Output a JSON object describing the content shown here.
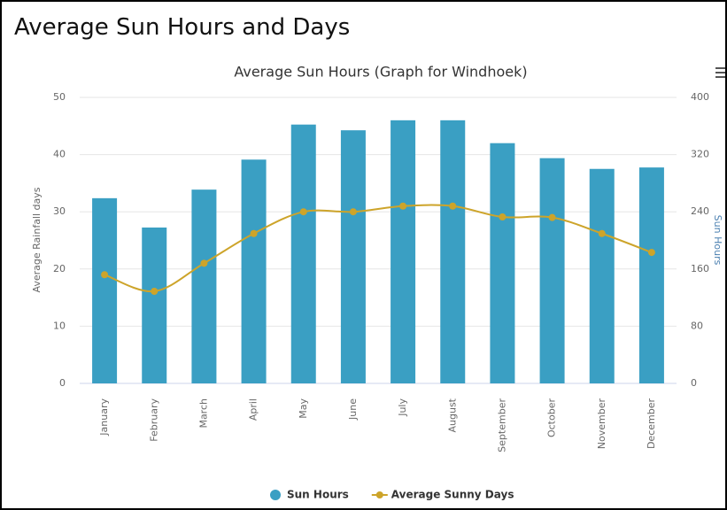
{
  "heading": "Average Sun Hours and Days",
  "chart_data": {
    "type": "bar-line",
    "title": "Average Sun Hours (Graph for Windhoek)",
    "categories": [
      "January",
      "February",
      "March",
      "April",
      "May",
      "June",
      "July",
      "August",
      "September",
      "October",
      "November",
      "December"
    ],
    "series": [
      {
        "name": "Sun Hours",
        "type": "bar",
        "axis": "y2",
        "color": "#3a9fc3",
        "values": [
          259,
          218,
          271,
          313,
          362,
          354,
          368,
          368,
          336,
          315,
          300,
          302
        ]
      },
      {
        "name": "Average Sunny Days",
        "type": "line",
        "axis": "y",
        "color": "#cda42a",
        "values": [
          19,
          16.1,
          21,
          26.2,
          30,
          30,
          31,
          31,
          29.1,
          29,
          26.2,
          22.9
        ]
      }
    ],
    "ylabel": "Average Rainfall days",
    "y2label": "Sun Hours",
    "ylim": [
      0,
      50
    ],
    "yticks": [
      0,
      10,
      20,
      30,
      40,
      50
    ],
    "y2lim": [
      0,
      400
    ],
    "y2ticks": [
      0,
      80,
      160,
      240,
      320,
      400
    ],
    "grid": true,
    "legend": "bottom"
  }
}
